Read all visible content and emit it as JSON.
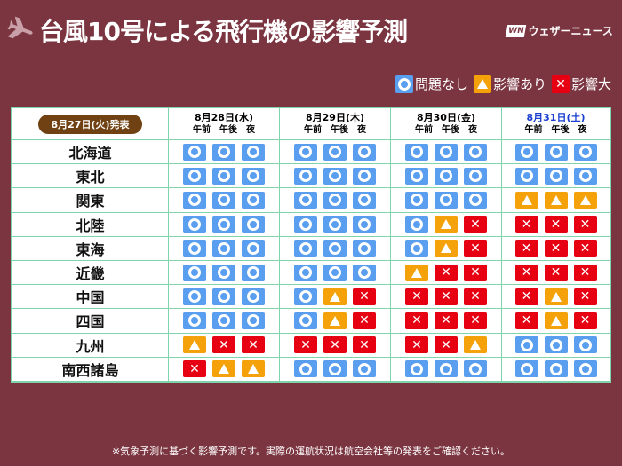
{
  "header": {
    "title": "台風10号による飛行機の影響予測",
    "logo_mark": "WN",
    "logo_text": "ウェザーニュース",
    "icon": "airplane-icon"
  },
  "legend": [
    {
      "type": "o",
      "label": "問題なし"
    },
    {
      "type": "t",
      "label": "影響あり"
    },
    {
      "type": "x",
      "label": "影響大"
    }
  ],
  "colors": {
    "background": "#7b3540",
    "ok": "#5a9ef0",
    "caution": "#f5a20a",
    "severe": "#e60012",
    "saturday": "#1a3fd0",
    "border": "#80d4ac"
  },
  "table": {
    "issued": "8月27日(火)発表",
    "periods": [
      "午前",
      "午後",
      "夜"
    ],
    "days": [
      {
        "date": "8月28日(水)"
      },
      {
        "date": "8月29日(木)"
      },
      {
        "date": "8月30日(金)"
      },
      {
        "date": "8月31日(土)",
        "saturday": true
      }
    ],
    "rows": [
      {
        "region": "北海道",
        "values": [
          "ooo",
          "ooo",
          "ooo",
          "ooo"
        ]
      },
      {
        "region": "東北",
        "values": [
          "ooo",
          "ooo",
          "ooo",
          "ooo"
        ]
      },
      {
        "region": "関東",
        "values": [
          "ooo",
          "ooo",
          "ooo",
          "ttt"
        ]
      },
      {
        "region": "北陸",
        "values": [
          "ooo",
          "ooo",
          "otx",
          "xxx"
        ]
      },
      {
        "region": "東海",
        "values": [
          "ooo",
          "ooo",
          "otx",
          "xxx"
        ]
      },
      {
        "region": "近畿",
        "values": [
          "ooo",
          "ooo",
          "txx",
          "xxx"
        ]
      },
      {
        "region": "中国",
        "values": [
          "ooo",
          "otx",
          "xxx",
          "xtx"
        ]
      },
      {
        "region": "四国",
        "values": [
          "ooo",
          "otx",
          "xxx",
          "xtx"
        ]
      },
      {
        "region": "九州",
        "values": [
          "txx",
          "xxx",
          "xxt",
          "ooo"
        ]
      },
      {
        "region": "南西諸島",
        "values": [
          "xtt",
          "ooo",
          "ooo",
          "ooo"
        ]
      }
    ]
  },
  "footnote": "※気象予測に基づく影響予測です。実際の運航状況は航空会社等の発表をご確認ください。"
}
